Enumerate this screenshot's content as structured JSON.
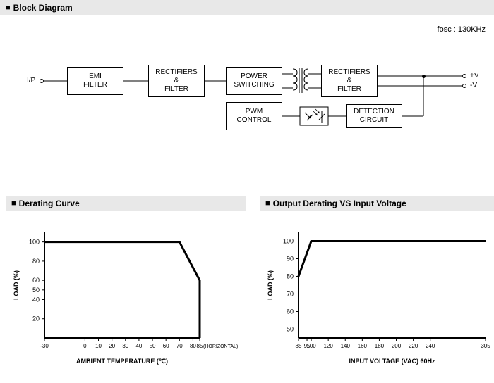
{
  "sections": {
    "block": "Block Diagram",
    "derating": "Derating Curve",
    "output_derating": "Output Derating VS Input Voltage"
  },
  "fosc_label": "fosc : 130KHz",
  "blocks": {
    "emi": "EMI\nFILTER",
    "rect1": "RECTIFIERS\n&\nFILTER",
    "power": "POWER\nSWITCHING",
    "pwm": "PWM\nCONTROL",
    "rect2": "RECTIFIERS\n&\nFILTER",
    "detection": "DETECTION\nCIRCUIT"
  },
  "terminals": {
    "ip": "I/P",
    "vp": "+V",
    "vn": "-V"
  },
  "chart1": {
    "type": "line",
    "ylabel": "LOAD (%)",
    "xlabel": "AMBIENT TEMPERATURE (℃)",
    "xticks": [
      -30,
      0,
      10,
      20,
      30,
      40,
      50,
      60,
      70,
      80,
      85
    ],
    "yticks": [
      20,
      40,
      50,
      60,
      80,
      100
    ],
    "horizontal_label": "(HORIZONTAL)",
    "points": [
      [
        -30,
        100
      ],
      [
        70,
        100
      ],
      [
        85,
        60
      ],
      [
        85,
        0
      ]
    ],
    "xlim": [
      -30,
      85
    ],
    "ylim": [
      0,
      110
    ],
    "line_color": "#000000",
    "line_width": 3,
    "axis_color": "#000000",
    "background": "#ffffff"
  },
  "chart2": {
    "type": "line",
    "ylabel": "LOAD (%)",
    "xlabel": "INPUT VOLTAGE (VAC) 60Hz",
    "xticks": [
      85,
      95,
      100,
      120,
      140,
      160,
      180,
      200,
      220,
      240,
      305
    ],
    "yticks": [
      50,
      60,
      70,
      80,
      90,
      100
    ],
    "points": [
      [
        85,
        80
      ],
      [
        100,
        100
      ],
      [
        305,
        100
      ]
    ],
    "xlim": [
      85,
      305
    ],
    "ylim": [
      45,
      105
    ],
    "line_color": "#000000",
    "line_width": 3,
    "axis_color": "#000000",
    "background": "#ffffff"
  }
}
